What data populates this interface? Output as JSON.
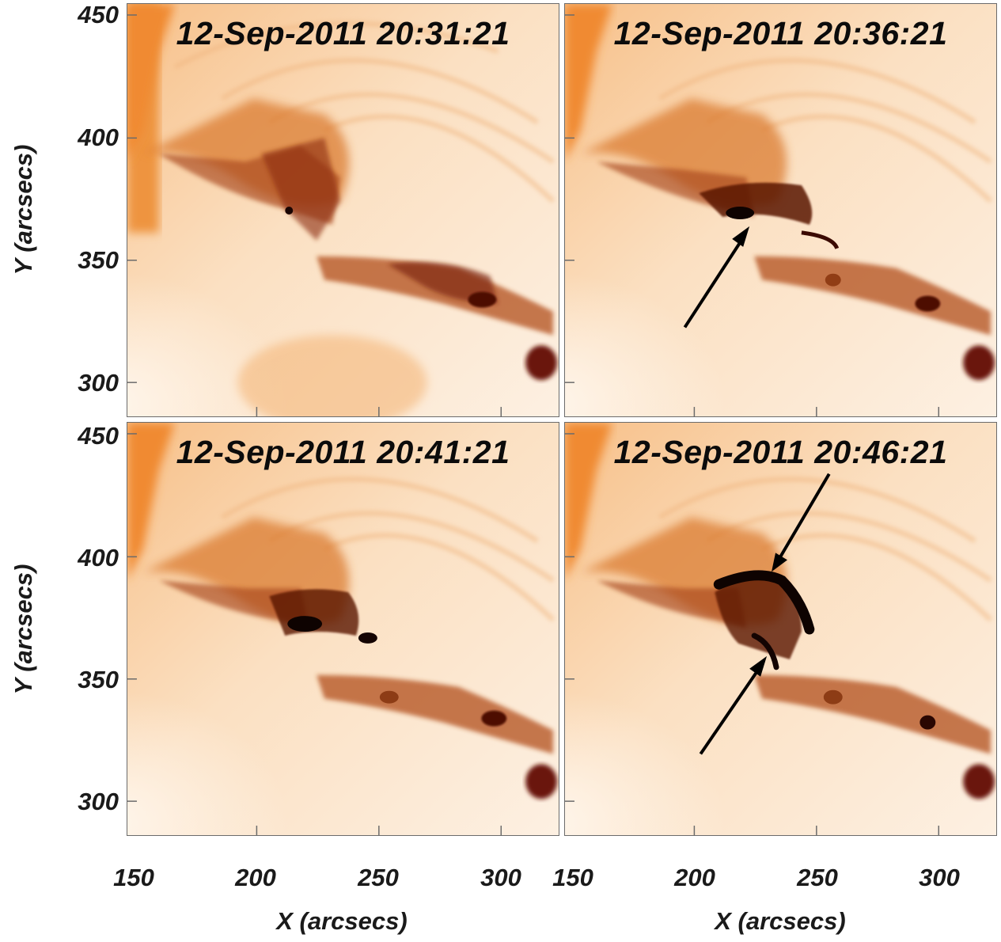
{
  "panels": [
    {
      "timestamp": "12-Sep-2011 20:31:21",
      "arrows": 0
    },
    {
      "timestamp": "12-Sep-2011 20:36:21",
      "arrows": 1
    },
    {
      "timestamp": "12-Sep-2011 20:41:21",
      "arrows": 0
    },
    {
      "timestamp": "12-Sep-2011 20:46:21",
      "arrows": 2
    }
  ],
  "axes": {
    "xlabel": "X (arcsecs)",
    "ylabel": "Y (arcsecs)",
    "x_ticks": [
      "150",
      "200",
      "250",
      "300"
    ],
    "y_ticks": [
      "450",
      "400",
      "350",
      "300"
    ]
  },
  "colors": {
    "bright": "#fcefe0",
    "mid": "#f2a257",
    "dark": "#6e1406",
    "arrow": "#000000"
  }
}
